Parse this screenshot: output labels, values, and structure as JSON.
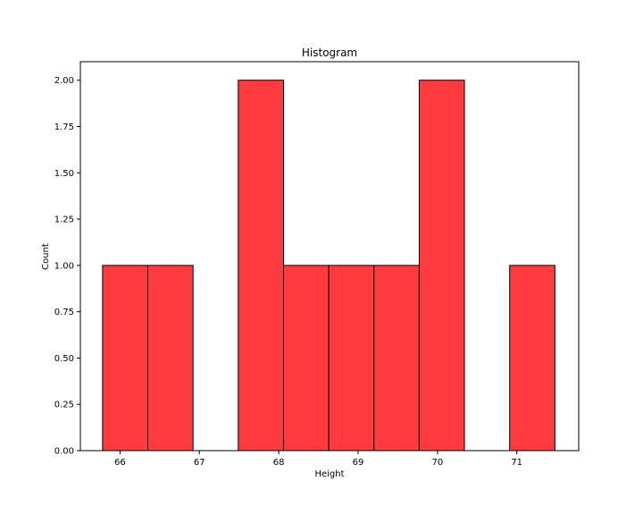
{
  "chart_data": {
    "type": "bar",
    "title": "Histogram",
    "xlabel": "Height",
    "ylabel": "Count",
    "bar_color": "#ff3b3f",
    "bins": [
      {
        "x0": 65.78,
        "x1": 66.35,
        "value": 1
      },
      {
        "x0": 66.35,
        "x1": 66.92,
        "value": 1
      },
      {
        "x0": 66.92,
        "x1": 67.49,
        "value": 0
      },
      {
        "x0": 67.49,
        "x1": 68.06,
        "value": 2
      },
      {
        "x0": 68.06,
        "x1": 68.63,
        "value": 1
      },
      {
        "x0": 68.63,
        "x1": 69.2,
        "value": 1
      },
      {
        "x0": 69.2,
        "x1": 69.77,
        "value": 1
      },
      {
        "x0": 69.77,
        "x1": 70.34,
        "value": 2
      },
      {
        "x0": 70.34,
        "x1": 70.91,
        "value": 0
      },
      {
        "x0": 70.91,
        "x1": 71.48,
        "value": 1
      }
    ],
    "xlim": [
      65.5,
      71.78
    ],
    "ylim": [
      0,
      2.1
    ],
    "xticks": [
      66,
      67,
      68,
      69,
      70,
      71
    ],
    "yticks": [
      0,
      0.25,
      0.5,
      0.75,
      1.0,
      1.25,
      1.5,
      1.75,
      2.0
    ],
    "ytick_labels": [
      "0.00",
      "0.25",
      "0.50",
      "0.75",
      "1.00",
      "1.25",
      "1.50",
      "1.75",
      "2.00"
    ],
    "grid": false
  }
}
